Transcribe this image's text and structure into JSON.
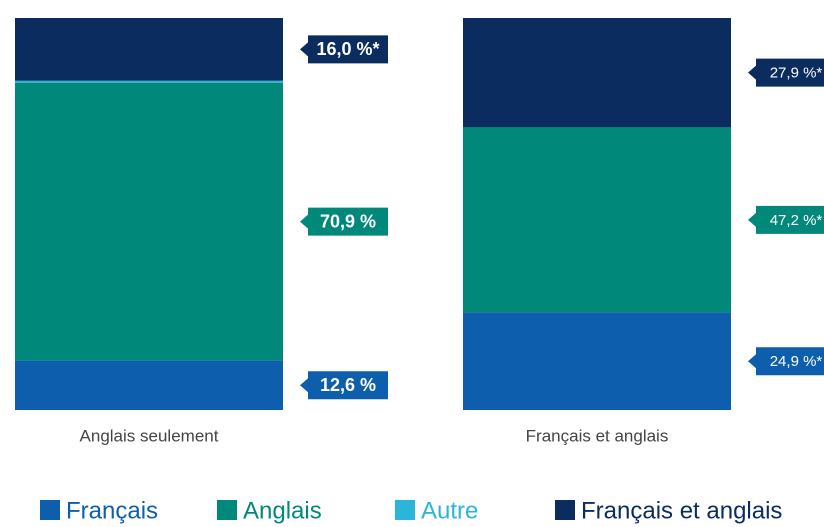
{
  "chart_data": {
    "type": "stacked-bar",
    "categories": [
      "Anglais seulement",
      "Français et anglais"
    ],
    "series": [
      {
        "name": "Français",
        "color": "#0d5fad",
        "values": [
          12.6,
          24.9
        ],
        "value_labels": [
          "12,6 %",
          "24,9 %*"
        ]
      },
      {
        "name": "Anglais",
        "color": "#00897b",
        "values": [
          70.9,
          47.2
        ],
        "value_labels": [
          "70,9 %",
          "47,2 %*"
        ]
      },
      {
        "name": "Autre",
        "color": "#2bb5d8",
        "values": [
          0.5,
          0
        ],
        "value_labels": [
          null,
          null
        ]
      },
      {
        "name": "Français et anglais",
        "color": "#0a2c5e",
        "values": [
          16.0,
          27.9
        ],
        "value_labels": [
          "16,0 %*",
          "27,9 %*"
        ]
      }
    ],
    "ylim": [
      0,
      100
    ],
    "legend": "bottom"
  }
}
